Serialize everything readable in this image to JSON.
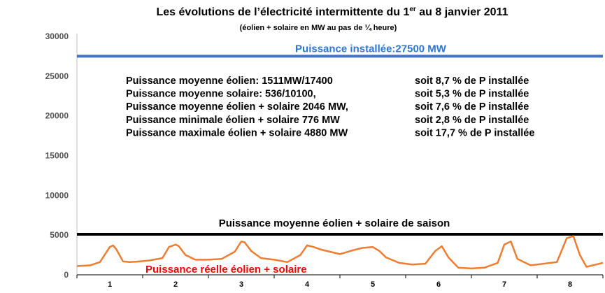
{
  "chart_data": {
    "type": "line",
    "title": "Les évolutions de l’électricité intermittente du 1",
    "title_sup": "er",
    "title_tail": " au 8 janvier 2011",
    "subtitle": "(éolien + solaire en MW au pas de ¼ heure)",
    "ylim": [
      0,
      30000
    ],
    "yticks": [
      "0",
      "5000",
      "10000",
      "15000",
      "20000",
      "25000",
      "30000"
    ],
    "xlim": [
      0.5,
      8.5
    ],
    "xticks": [
      "1",
      "2",
      "3",
      "4",
      "5",
      "6",
      "7",
      "8"
    ],
    "grid": false,
    "reference_lines": [
      {
        "name": "Puissance installée",
        "value": 27500,
        "color": "#4472c4",
        "label": "Puissance installée:27500 MW"
      },
      {
        "name": "Puissance moyenne éolien + solaire de saison",
        "value": 5100,
        "color": "#000000",
        "label": "Puissance moyenne éolien + solaire de saison"
      }
    ],
    "series": [
      {
        "name": "Puissance réelle éolien + solaire",
        "color": "#ed7d31",
        "x": [
          0.5,
          0.7,
          0.85,
          1.0,
          1.05,
          1.1,
          1.2,
          1.3,
          1.4,
          1.6,
          1.8,
          1.9,
          2.0,
          2.05,
          2.15,
          2.3,
          2.5,
          2.7,
          2.9,
          3.0,
          3.05,
          3.15,
          3.3,
          3.5,
          3.7,
          3.9,
          4.0,
          4.1,
          4.2,
          4.3,
          4.5,
          4.7,
          4.85,
          5.0,
          5.1,
          5.2,
          5.4,
          5.6,
          5.8,
          5.95,
          6.05,
          6.15,
          6.3,
          6.5,
          6.7,
          6.9,
          7.0,
          7.1,
          7.2,
          7.4,
          7.6,
          7.8,
          7.95,
          8.05,
          8.15,
          8.25,
          8.4,
          8.5
        ],
        "values": [
          1100,
          1200,
          1600,
          3500,
          3700,
          3200,
          1700,
          1600,
          1650,
          1800,
          2100,
          3500,
          3800,
          3600,
          2500,
          1900,
          1900,
          2000,
          2900,
          4200,
          4100,
          3000,
          2100,
          1900,
          1600,
          2500,
          3700,
          3500,
          3200,
          3000,
          2600,
          3100,
          3400,
          3500,
          3000,
          2200,
          1500,
          1300,
          1400,
          3000,
          3600,
          2200,
          900,
          800,
          900,
          1500,
          3800,
          4200,
          2000,
          1200,
          1400,
          1600,
          4600,
          4880,
          2500,
          1000,
          1300,
          1500
        ]
      }
    ],
    "annotations": [
      {
        "label": "Puissance moyenne éolien: 1511MW/17400",
        "share": "soit 8,7 % de P installée"
      },
      {
        "label": "Puissance moyenne solaire: 536/10100,",
        "share": "soit 5,3 % de P installée"
      },
      {
        "label": "Puissance moyenne éolien + solaire 2046 MW,",
        "share": "soit 7,6 % de P installée"
      },
      {
        "label": "Puissance minimale éolien + solaire 776 MW",
        "share": "soit 2,8 % de P installée"
      },
      {
        "label": "Puissance maximale éolien + solaire 4880 MW",
        "share": "soit 17,7 % de P installée"
      }
    ]
  }
}
